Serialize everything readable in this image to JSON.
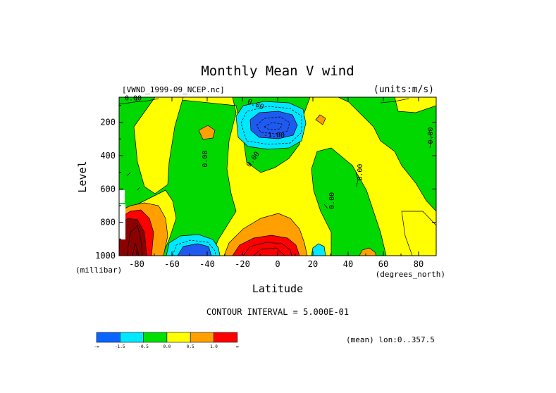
{
  "chart_data": {
    "type": "heatmap",
    "title": "Monthly Mean V wind",
    "dataset_label": "[VWND_1999-09_NCEP.nc]",
    "units_label": "(units:m/s)",
    "xlabel": "Latitude",
    "x_units": "(degrees_north)",
    "ylabel": "Level",
    "y_units": "(millibar)",
    "xlim": [
      -90,
      90
    ],
    "ylim": [
      1000,
      50
    ],
    "x_ticks": [
      -80,
      -60,
      -40,
      -20,
      0,
      20,
      40,
      60,
      80
    ],
    "x_tick_labels": [
      "-80",
      "-60",
      "-40",
      "-20",
      "0",
      "20",
      "40",
      "60",
      "80"
    ],
    "y_ticks": [
      200,
      400,
      600,
      800,
      1000
    ],
    "y_tick_labels": [
      "200",
      "400",
      "600",
      "800",
      "1000"
    ],
    "contour_interval_text": "CONTOUR INTERVAL = 5.000E-01",
    "mean_text": "(mean) lon:0..357.5",
    "contour_labels": [
      {
        "text": "0.00",
        "lat": -82,
        "lev": 70,
        "rot": 0
      },
      {
        "text": "0.00",
        "lat": -13,
        "lev": 105,
        "rot": 22
      },
      {
        "text": "-1.00",
        "lat": -2,
        "lev": 290,
        "rot": 0
      },
      {
        "text": "0.00",
        "lat": -40,
        "lev": 420,
        "rot": -90
      },
      {
        "text": "0.00",
        "lat": -13,
        "lev": 430,
        "rot": -55
      },
      {
        "text": "0.00",
        "lat": 48,
        "lev": 500,
        "rot": -90
      },
      {
        "text": "0.00",
        "lat": 32,
        "lev": 670,
        "rot": -90
      },
      {
        "text": "0.00",
        "lat": 88,
        "lev": 280,
        "rot": -90
      }
    ],
    "colorbar": {
      "levels": [
        "-∞",
        "-1.5",
        "-0.5",
        "0.0",
        "0.5",
        "1.0",
        "∞"
      ],
      "colors": [
        "#0a64ff",
        "#00e8ff",
        "#00e000",
        "#ffff00",
        "#ffa000",
        "#ff0000"
      ]
    },
    "shading_colors": {
      "strong_negative": "#1e5af0",
      "negative": "#00e8ff",
      "near_zero_negative": "#00d800",
      "near_zero_positive": "#ffff00",
      "positive": "#ffa000",
      "strong_positive": "#ff0000",
      "very_strong_positive": "#8b0000"
    },
    "features": [
      {
        "kind": "max",
        "lat": -4,
        "lev": 940,
        "value": 2.5
      },
      {
        "kind": "min",
        "lat": -8,
        "lev": 190,
        "value": -2.5
      },
      {
        "kind": "min",
        "lat": -53,
        "lev": 960,
        "value": -1.5
      },
      {
        "kind": "max",
        "lat": -83,
        "lev": 900,
        "value": 3.0
      }
    ]
  }
}
